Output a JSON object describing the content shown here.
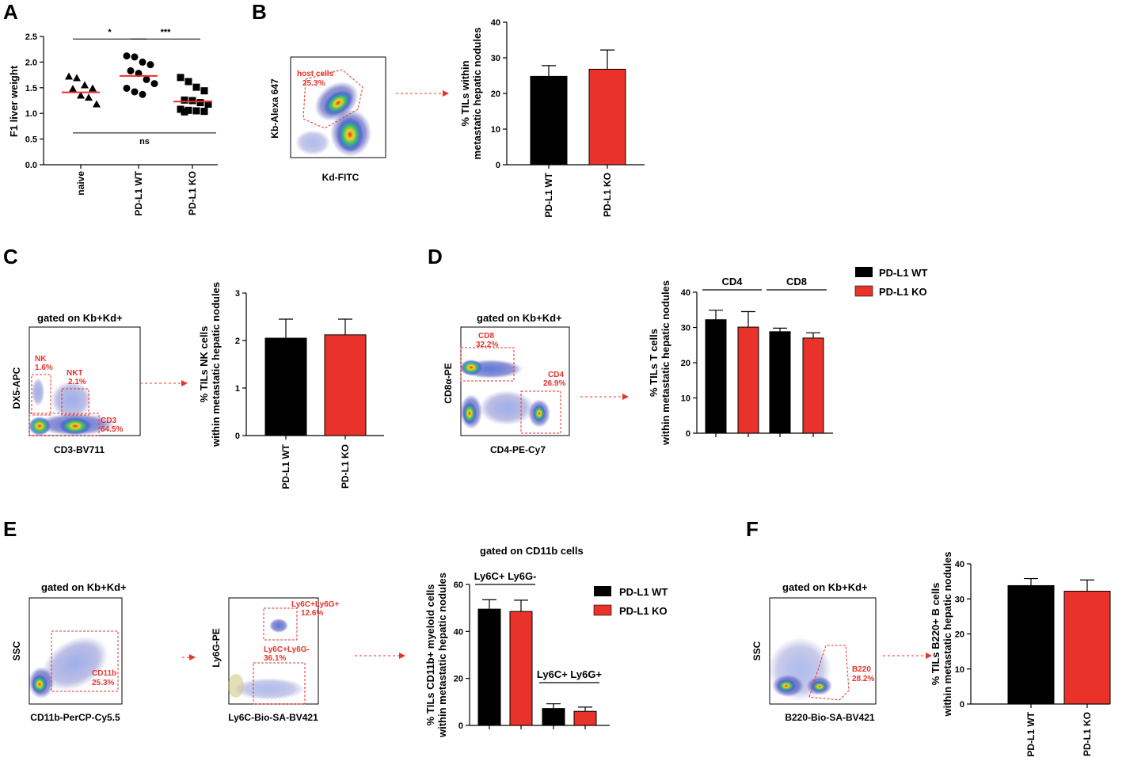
{
  "colors": {
    "wt": "#000000",
    "ko": "#e8322a",
    "accent": "#e8322a"
  },
  "panels": {
    "A": {
      "letter": "A"
    },
    "B": {
      "letter": "B",
      "xlabel": "Kd-FITC",
      "ylabel": "Kb-Alexa 647",
      "gates": [
        {
          "name": "host cells",
          "pct": "25.3%"
        }
      ]
    },
    "C": {
      "letter": "C",
      "gate_title": "gated on Kb+Kd+",
      "xlabel": "CD3-BV711",
      "ylabel": "DX5-APC",
      "gates": [
        {
          "name": "NK",
          "pct": "1.6%"
        },
        {
          "name": "NKT",
          "pct": "2.1%"
        },
        {
          "name": "CD3",
          "pct": "64.5%"
        }
      ]
    },
    "D": {
      "letter": "D",
      "gate_title": "gated on Kb+Kd+",
      "xlabel": "CD4-PE-Cy7",
      "ylabel": "CD8α-PE",
      "gates": [
        {
          "name": "CD8",
          "pct": "32.2%"
        },
        {
          "name": "CD4",
          "pct": "26.9%"
        }
      ]
    },
    "E": {
      "letter": "E",
      "gate_title": "gated on Kb+Kd+",
      "plot1": {
        "xlabel": "CD11b-PerCP-Cy5.5",
        "ylabel": "SSC",
        "gates": [
          {
            "name": "CD11b",
            "pct": "25.3%"
          }
        ]
      },
      "plot2": {
        "xlabel": "Ly6C-Bio-SA-BV421",
        "ylabel": "Ly6G-PE",
        "gates": [
          {
            "name": "Ly6C+Ly6G+",
            "pct": "12.6%"
          },
          {
            "name": "Ly6C+Ly6G-",
            "pct": "36.1%"
          }
        ]
      }
    },
    "F": {
      "letter": "F",
      "gate_title": "gated on Kb+Kd+",
      "xlabel": "B220-Bio-SA-BV421",
      "ylabel": "SSC",
      "gates": [
        {
          "name": "B220",
          "pct": "28.2%"
        }
      ]
    }
  },
  "legend": {
    "wt": "PD-L1 WT",
    "ko": "PD-L1 KO"
  },
  "chart_data": [
    {
      "id": "A",
      "type": "scatter",
      "ylabel": "F1 liver weight",
      "ylim": [
        0,
        2.5
      ],
      "yticks": [
        0,
        0.5,
        1.0,
        1.5,
        2.0,
        2.5
      ],
      "categories": [
        "naive",
        "PD-L1 WT",
        "PD-L1 KO"
      ],
      "markers": [
        "triangle",
        "circle",
        "square"
      ],
      "series": [
        {
          "name": "naive",
          "values": [
            1.72,
            1.69,
            1.55,
            1.49,
            1.48,
            1.35,
            1.31,
            1.18
          ],
          "mean": 1.41
        },
        {
          "name": "PD-L1 WT",
          "values": [
            2.12,
            2.1,
            2.0,
            1.95,
            1.83,
            1.78,
            1.66,
            1.58,
            1.49,
            1.42,
            1.37
          ],
          "mean": 1.73
        },
        {
          "name": "PD-L1 KO",
          "values": [
            1.7,
            1.62,
            1.51,
            1.44,
            1.26,
            1.25,
            1.21,
            1.18,
            1.08,
            1.06,
            1.05,
            1.04,
            1.03
          ],
          "mean": 1.23
        }
      ],
      "annotations": [
        {
          "from": 0,
          "to": 1,
          "label": "*",
          "y": 2.45
        },
        {
          "from": 1,
          "to": 2,
          "label": "***",
          "y": 2.45
        },
        {
          "from": 0,
          "to": 2,
          "label": "ns",
          "y": 0.62
        }
      ]
    },
    {
      "id": "B",
      "type": "bar",
      "ylabel": [
        "% TILs within",
        "metastatic hepatic nodules"
      ],
      "ylim": [
        0,
        40
      ],
      "yticks": [
        0,
        10,
        20,
        30,
        40
      ],
      "categories": [
        "PD-L1 WT",
        "PD-L1 KO"
      ],
      "values": [
        24.8,
        26.8
      ],
      "errors": [
        3.0,
        5.4
      ]
    },
    {
      "id": "C",
      "type": "bar",
      "ylabel": [
        "% TILs NK cells",
        "within metastatic hepatic nodules"
      ],
      "ylim": [
        0,
        3
      ],
      "yticks": [
        0,
        1,
        2,
        3
      ],
      "categories": [
        "PD-L1 WT",
        "PD-L1 KO"
      ],
      "values": [
        2.05,
        2.12
      ],
      "errors": [
        0.4,
        0.33
      ]
    },
    {
      "id": "D",
      "type": "bar",
      "ylabel": [
        "% TILs T cells",
        "within metastatic hepatic nodules"
      ],
      "ylim": [
        0,
        40
      ],
      "yticks": [
        0,
        10,
        20,
        30,
        40
      ],
      "groups": [
        "CD4",
        "CD8"
      ],
      "series": [
        {
          "name": "PD-L1 WT",
          "values": [
            32.2,
            28.8
          ],
          "errors": [
            2.7,
            1.0
          ]
        },
        {
          "name": "PD-L1 KO",
          "values": [
            30.1,
            27.0
          ],
          "errors": [
            4.4,
            1.5
          ]
        }
      ]
    },
    {
      "id": "E",
      "type": "bar",
      "title": "gated on CD11b cells",
      "ylabel": [
        "% TILs CD11b+ myeloid cells",
        "within metastatic hepatic nodules"
      ],
      "ylim": [
        0,
        60
      ],
      "yticks": [
        0,
        20,
        40,
        60
      ],
      "groups": [
        "Ly6C+ Ly6G-",
        "Ly6C+ Ly6G+"
      ],
      "series": [
        {
          "name": "PD-L1 WT",
          "values": [
            49.5,
            7.2
          ],
          "errors": [
            4.0,
            2.0
          ]
        },
        {
          "name": "PD-L1 KO",
          "values": [
            48.5,
            6.0
          ],
          "errors": [
            4.8,
            1.8
          ]
        }
      ]
    },
    {
      "id": "F",
      "type": "bar",
      "ylabel": [
        "% TILs B220+ B cells",
        "within metastatic hepatic nodules"
      ],
      "ylim": [
        0,
        40
      ],
      "yticks": [
        0,
        10,
        20,
        30,
        40
      ],
      "categories": [
        "PD-L1 WT",
        "PD-L1 KO"
      ],
      "values": [
        33.8,
        32.2
      ],
      "errors": [
        2.0,
        3.2
      ]
    }
  ]
}
